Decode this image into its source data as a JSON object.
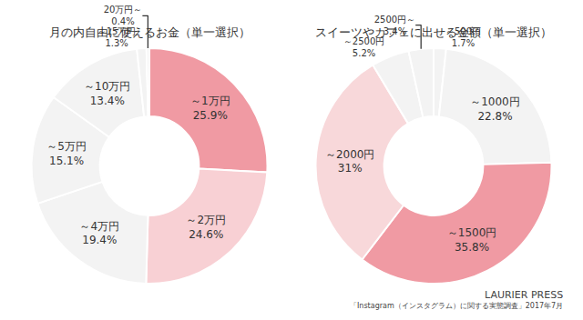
{
  "chart_data": [
    {
      "type": "pie",
      "title": "月の内自由に使えるお金（単一選択）",
      "categories": [
        "～1万円",
        "～2万円",
        "～4万円",
        "～5万円",
        "～10万円",
        "～15万円",
        "20万円～"
      ],
      "values": [
        25.9,
        24.6,
        19.4,
        15.1,
        13.4,
        1.3,
        0.4
      ],
      "value_labels": [
        "25.9%",
        "24.6%",
        "19.4%",
        "15.1%",
        "13.4%",
        "1.3%",
        "0.4%"
      ],
      "colors": [
        "#f09aa3",
        "#f8d0d4",
        "#f3f3f3",
        "#f3f3f3",
        "#f3f3f3",
        "#f3f3f3",
        "#f3f3f3"
      ],
      "data_labels": true
    },
    {
      "type": "pie",
      "title": "スイーツやカフェに出せる金額（単一選択）",
      "categories": [
        "～500円",
        "～1000円",
        "～1500円",
        "～2000円",
        "～2500円",
        "2500円～"
      ],
      "values": [
        1.7,
        22.8,
        35.8,
        31,
        5.2,
        3.4
      ],
      "value_labels": [
        "1.7%",
        "22.8%",
        "35.8%",
        "31%",
        "5.2%",
        "3.4%"
      ],
      "colors": [
        "#f3f3f3",
        "#f3f3f3",
        "#f09aa3",
        "#f8d8da",
        "#f3f3f3",
        "#f3f3f3"
      ],
      "data_labels": true,
      "annotations": [
        "LAURIER PRESS",
        "「Instagram（インスタグラム）に関する実態調査」2017年7月"
      ]
    }
  ]
}
